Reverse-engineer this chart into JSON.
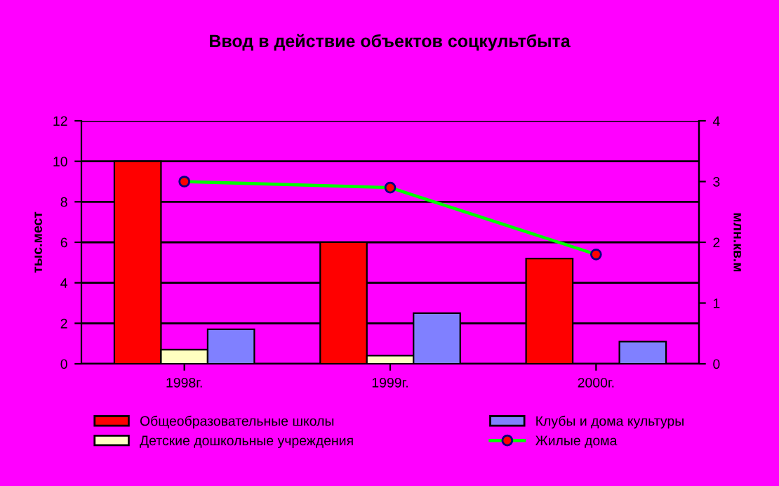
{
  "chart_data": {
    "type": "bar",
    "title": "Ввод в действие объектов соцкультбыта",
    "categories": [
      "1998г.",
      "1999г.",
      "2000г."
    ],
    "series": [
      {
        "name": "Общеобразовательные школы",
        "color": "#ff0000",
        "values": [
          10,
          6,
          5.2
        ]
      },
      {
        "name": "Детские дошкольные учреждения",
        "color": "#ffffc0",
        "values": [
          0.7,
          0.4,
          null
        ]
      },
      {
        "name": "Клубы и дома культуры",
        "color": "#8080ff",
        "values": [
          1.7,
          2.5,
          1.1
        ]
      },
      {
        "name": "Жилые дома",
        "type": "line",
        "axis": "y2",
        "color": "#00ff00",
        "marker": "circle",
        "values": [
          3.0,
          2.9,
          1.8
        ]
      }
    ],
    "ylabel": "тыс.мест",
    "y2label": "млн.кв.м",
    "ylim": [
      0,
      12
    ],
    "yticks": [
      0,
      2,
      4,
      6,
      8,
      10,
      12
    ],
    "y2lim": [
      0,
      4
    ],
    "y2ticks": [
      0,
      1,
      2,
      3,
      4
    ],
    "grid": "y",
    "legend": "bottom"
  }
}
